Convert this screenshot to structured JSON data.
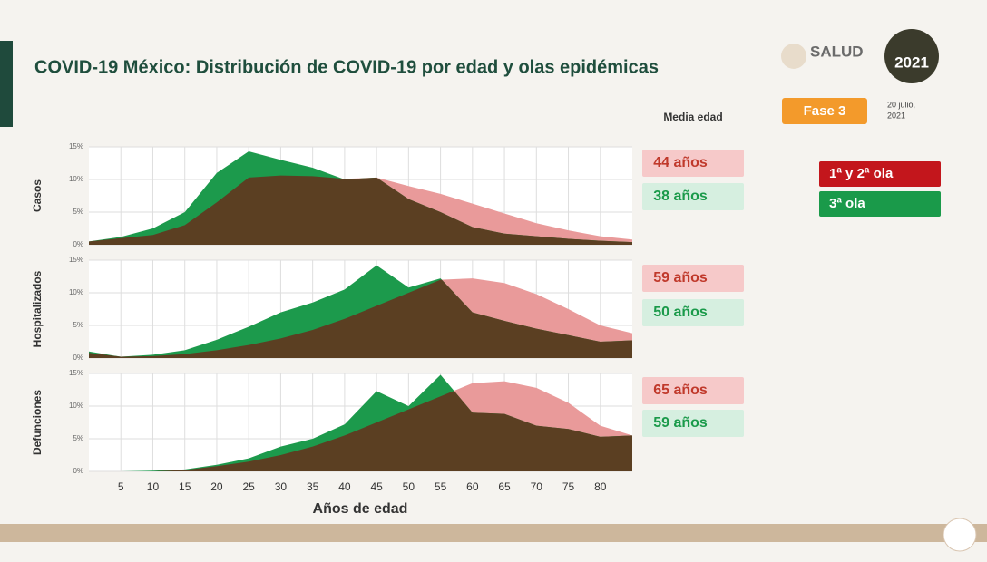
{
  "header": {
    "title": "COVID-19 México: Distribución de COVID-19 por edad y olas epidémicas",
    "logo_text": "SALUD",
    "logo_year": "2021",
    "phase": "Fase 3",
    "date_line1": "20 julio,",
    "date_line2": "2021",
    "mean_age_header": "Media edad"
  },
  "chart_data": [
    {
      "type": "area",
      "ylabel": "Casos",
      "x": [
        0,
        5,
        10,
        15,
        20,
        25,
        30,
        35,
        40,
        45,
        50,
        55,
        60,
        65,
        70,
        75,
        80,
        85
      ],
      "xlim": [
        0,
        85
      ],
      "xticks": [
        5,
        10,
        15,
        20,
        25,
        30,
        35,
        40,
        45,
        50,
        55,
        60,
        65,
        70,
        75,
        80
      ],
      "ylim": [
        0,
        15
      ],
      "yticks": [
        {
          "value": 0,
          "label": "0%"
        },
        {
          "value": 5,
          "label": "5%"
        },
        {
          "value": 10,
          "label": "10%"
        },
        {
          "value": 15,
          "label": "15%"
        }
      ],
      "grid": true,
      "mean_age_labels": [
        "44 años",
        "38 años"
      ],
      "series": [
        {
          "name": "1ª y 2ª ola",
          "color": "#e99a9a",
          "legend_color": "#c3161c",
          "values": [
            0.5,
            1,
            1.5,
            3,
            6.5,
            10.3,
            10.6,
            10.5,
            10.1,
            10.3,
            9,
            7.8,
            6.3,
            4.8,
            3.3,
            2.2,
            1.3,
            0.8
          ]
        },
        {
          "name": "3ª ola",
          "color": "#1c9a4c",
          "legend_color": "#1a9a4a",
          "values": [
            0.5,
            1.2,
            2.5,
            5,
            11,
            14.3,
            13,
            11.8,
            10,
            10.3,
            7,
            5,
            2.7,
            1.7,
            1.3,
            0.9,
            0.6,
            0.4
          ]
        }
      ]
    },
    {
      "type": "area",
      "ylabel": "Hospitalizados",
      "x": [
        0,
        5,
        10,
        15,
        20,
        25,
        30,
        35,
        40,
        45,
        50,
        55,
        60,
        65,
        70,
        75,
        80,
        85
      ],
      "xlim": [
        0,
        85
      ],
      "xticks": [
        5,
        10,
        15,
        20,
        25,
        30,
        35,
        40,
        45,
        50,
        55,
        60,
        65,
        70,
        75,
        80
      ],
      "ylim": [
        0,
        15
      ],
      "yticks": [
        {
          "value": 0,
          "label": "0%"
        },
        {
          "value": 5,
          "label": "5%"
        },
        {
          "value": 10,
          "label": "10%"
        },
        {
          "value": 15,
          "label": "15%"
        }
      ],
      "grid": true,
      "mean_age_labels": [
        "59 años",
        "50 años"
      ],
      "series": [
        {
          "name": "1ª y 2ª ola",
          "color": "#e99a9a",
          "values": [
            0.8,
            0.2,
            0.3,
            0.6,
            1.2,
            2,
            3,
            4.3,
            6,
            8,
            10,
            12,
            12.2,
            11.5,
            9.8,
            7.5,
            5,
            3.8
          ]
        },
        {
          "name": "3ª ola",
          "color": "#1c9a4c",
          "values": [
            1,
            0.2,
            0.5,
            1.2,
            2.8,
            4.8,
            7,
            8.5,
            10.5,
            14.2,
            10.8,
            12.2,
            7,
            5.7,
            4.5,
            3.5,
            2.5,
            2.7
          ]
        }
      ]
    },
    {
      "type": "area",
      "ylabel": "Defunciones",
      "xlabel": "Años de edad",
      "x": [
        0,
        5,
        10,
        15,
        20,
        25,
        30,
        35,
        40,
        45,
        50,
        55,
        60,
        65,
        70,
        75,
        80,
        85
      ],
      "xlim": [
        0,
        85
      ],
      "xticks": [
        5,
        10,
        15,
        20,
        25,
        30,
        35,
        40,
        45,
        50,
        55,
        60,
        65,
        70,
        75,
        80
      ],
      "ylim": [
        0,
        15
      ],
      "yticks": [
        {
          "value": 0,
          "label": "0%"
        },
        {
          "value": 5,
          "label": "5%"
        },
        {
          "value": 10,
          "label": "10%"
        },
        {
          "value": 15,
          "label": "15%"
        }
      ],
      "grid": true,
      "mean_age_labels": [
        "65 años",
        "59 años"
      ],
      "series": [
        {
          "name": "1ª y 2ª ola",
          "color": "#e99a9a",
          "values": [
            0,
            0,
            0,
            0.2,
            0.8,
            1.5,
            2.5,
            3.8,
            5.5,
            7.5,
            9.5,
            11.5,
            13.5,
            13.8,
            12.8,
            10.5,
            7,
            5.5
          ]
        },
        {
          "name": "3ª ola",
          "color": "#1c9a4c",
          "values": [
            0,
            0,
            0.1,
            0.3,
            1,
            2,
            3.8,
            5,
            7.2,
            12.3,
            10,
            14.8,
            9,
            8.8,
            7,
            6.5,
            5.3,
            5.5
          ]
        }
      ]
    }
  ]
}
